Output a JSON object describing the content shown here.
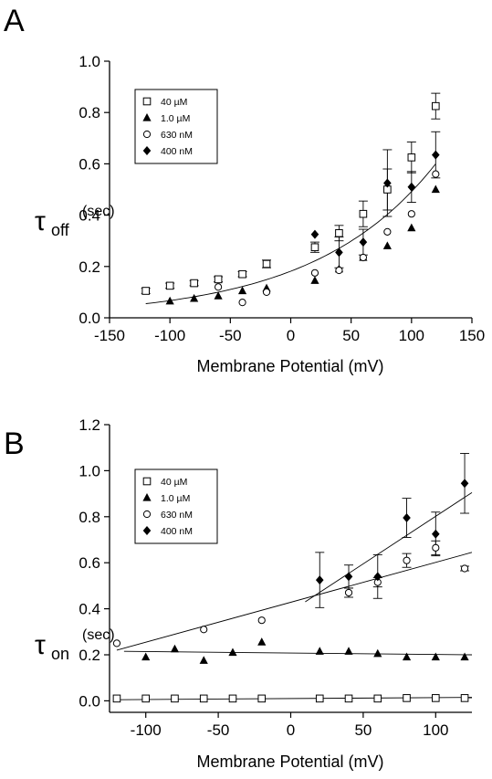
{
  "chart_data": [
    {
      "type": "scatter",
      "panel_label": "A",
      "xlabel": "Membrane Potential (mV)",
      "ylabel": {
        "symbol": "τ",
        "subscript": "off",
        "unit": "(sec)"
      },
      "xlim": [
        -150,
        150
      ],
      "ylim": [
        0.0,
        1.0
      ],
      "xticks": [
        -150,
        -100,
        -50,
        0,
        50,
        100,
        150
      ],
      "yticks": [
        0.0,
        0.2,
        0.4,
        0.6,
        0.8,
        1.0
      ],
      "xtick_labels": [
        "-150",
        "-100",
        "-50",
        "0",
        "50",
        "100",
        "150"
      ],
      "ytick_labels": [
        "0.0",
        "0.2",
        "0.4",
        "0.6",
        "0.8",
        "1.0"
      ],
      "grid": false,
      "legend_position": "top-left",
      "series": [
        {
          "name": "40 µM",
          "marker": "open-square",
          "x": [
            -120,
            -100,
            -80,
            -60,
            -40,
            -20,
            20,
            40,
            60,
            80,
            100,
            120
          ],
          "y": [
            0.105,
            0.125,
            0.135,
            0.15,
            0.17,
            0.21,
            0.275,
            0.33,
            0.405,
            0.5,
            0.625,
            0.825
          ],
          "err": [
            0.01,
            0.01,
            0.01,
            0.01,
            0.01,
            0.015,
            0.02,
            0.03,
            0.05,
            0.08,
            0.06,
            0.05
          ]
        },
        {
          "name": "1.0 µM",
          "marker": "filled-triangle",
          "x": [
            -100,
            -80,
            -60,
            -40,
            -20,
            20,
            40,
            60,
            80,
            100,
            120
          ],
          "y": [
            0.065,
            0.075,
            0.085,
            0.105,
            0.115,
            0.145,
            0.19,
            0.235,
            0.28,
            0.35,
            0.5
          ]
        },
        {
          "name": "630 nM",
          "marker": "open-circle",
          "x": [
            -60,
            -40,
            -20,
            20,
            40,
            60,
            80,
            100,
            120
          ],
          "y": [
            0.12,
            0.06,
            0.1,
            0.175,
            0.185,
            0.235,
            0.335,
            0.405,
            0.56
          ]
        },
        {
          "name": "400 nM",
          "marker": "filled-diamond",
          "x": [
            20,
            40,
            60,
            80,
            100,
            120
          ],
          "y": [
            0.325,
            0.255,
            0.295,
            0.525,
            0.51,
            0.635
          ],
          "err": [
            0.0,
            0.06,
            0.05,
            0.13,
            0.06,
            0.09
          ]
        }
      ],
      "fits": [
        {
          "kind": "exponential",
          "x_range": [
            -120,
            120
          ],
          "y_start": 0.055,
          "y_end": 0.6
        }
      ]
    },
    {
      "type": "scatter",
      "panel_label": "B",
      "xlabel": "Membrane Potential (mV)",
      "ylabel": {
        "symbol": "τ",
        "subscript": "on",
        "unit": "(sec)"
      },
      "xlim": [
        -125,
        125
      ],
      "ylim": [
        -0.05,
        1.2
      ],
      "xticks": [
        -100,
        -50,
        0,
        50,
        100
      ],
      "yticks": [
        0.0,
        0.2,
        0.4,
        0.6,
        0.8,
        1.0,
        1.2
      ],
      "xtick_labels": [
        "-100",
        "-50",
        "0",
        "50",
        "100"
      ],
      "ytick_labels": [
        "0.0",
        "0.2",
        "0.4",
        "0.6",
        "0.8",
        "1.0",
        "1.2"
      ],
      "grid": false,
      "legend_position": "top-left",
      "series": [
        {
          "name": "40 µM",
          "marker": "open-square",
          "x": [
            -120,
            -100,
            -80,
            -60,
            -40,
            -20,
            20,
            40,
            60,
            80,
            100,
            120
          ],
          "y": [
            0.01,
            0.01,
            0.01,
            0.01,
            0.01,
            0.01,
            0.01,
            0.01,
            0.01,
            0.012,
            0.012,
            0.012
          ]
        },
        {
          "name": "1.0 µM",
          "marker": "filled-triangle",
          "x": [
            -100,
            -80,
            -60,
            -40,
            -20,
            20,
            40,
            60,
            80,
            100,
            120
          ],
          "y": [
            0.19,
            0.225,
            0.175,
            0.21,
            0.255,
            0.215,
            0.215,
            0.205,
            0.19,
            0.19,
            0.19
          ]
        },
        {
          "name": "630 nM",
          "marker": "open-circle",
          "x": [
            -120,
            -60,
            -20,
            40,
            60,
            80,
            100,
            120
          ],
          "y": [
            0.25,
            0.31,
            0.35,
            0.47,
            0.515,
            0.61,
            0.665,
            0.575
          ],
          "err": [
            0.0,
            0.0,
            0.0,
            0.02,
            0.02,
            0.03,
            0.03,
            0.01
          ]
        },
        {
          "name": "400 nM",
          "marker": "filled-diamond",
          "x": [
            20,
            40,
            60,
            80,
            100,
            120
          ],
          "y": [
            0.525,
            0.54,
            0.54,
            0.795,
            0.725,
            0.945
          ],
          "err": [
            0.12,
            0.05,
            0.095,
            0.085,
            0.095,
            0.13
          ]
        }
      ],
      "fits": [
        {
          "kind": "linear",
          "x_range": [
            -120,
            125
          ],
          "y_start": 0.22,
          "y_end": 0.645
        },
        {
          "kind": "linear",
          "x_range": [
            10,
            125
          ],
          "y_start": 0.43,
          "y_end": 0.905
        },
        {
          "kind": "linear",
          "x_range": [
            -115,
            125
          ],
          "y_start": 0.215,
          "y_end": 0.2
        },
        {
          "kind": "linear",
          "x_range": [
            -120,
            125
          ],
          "y_start": 0.005,
          "y_end": 0.015
        }
      ]
    }
  ]
}
